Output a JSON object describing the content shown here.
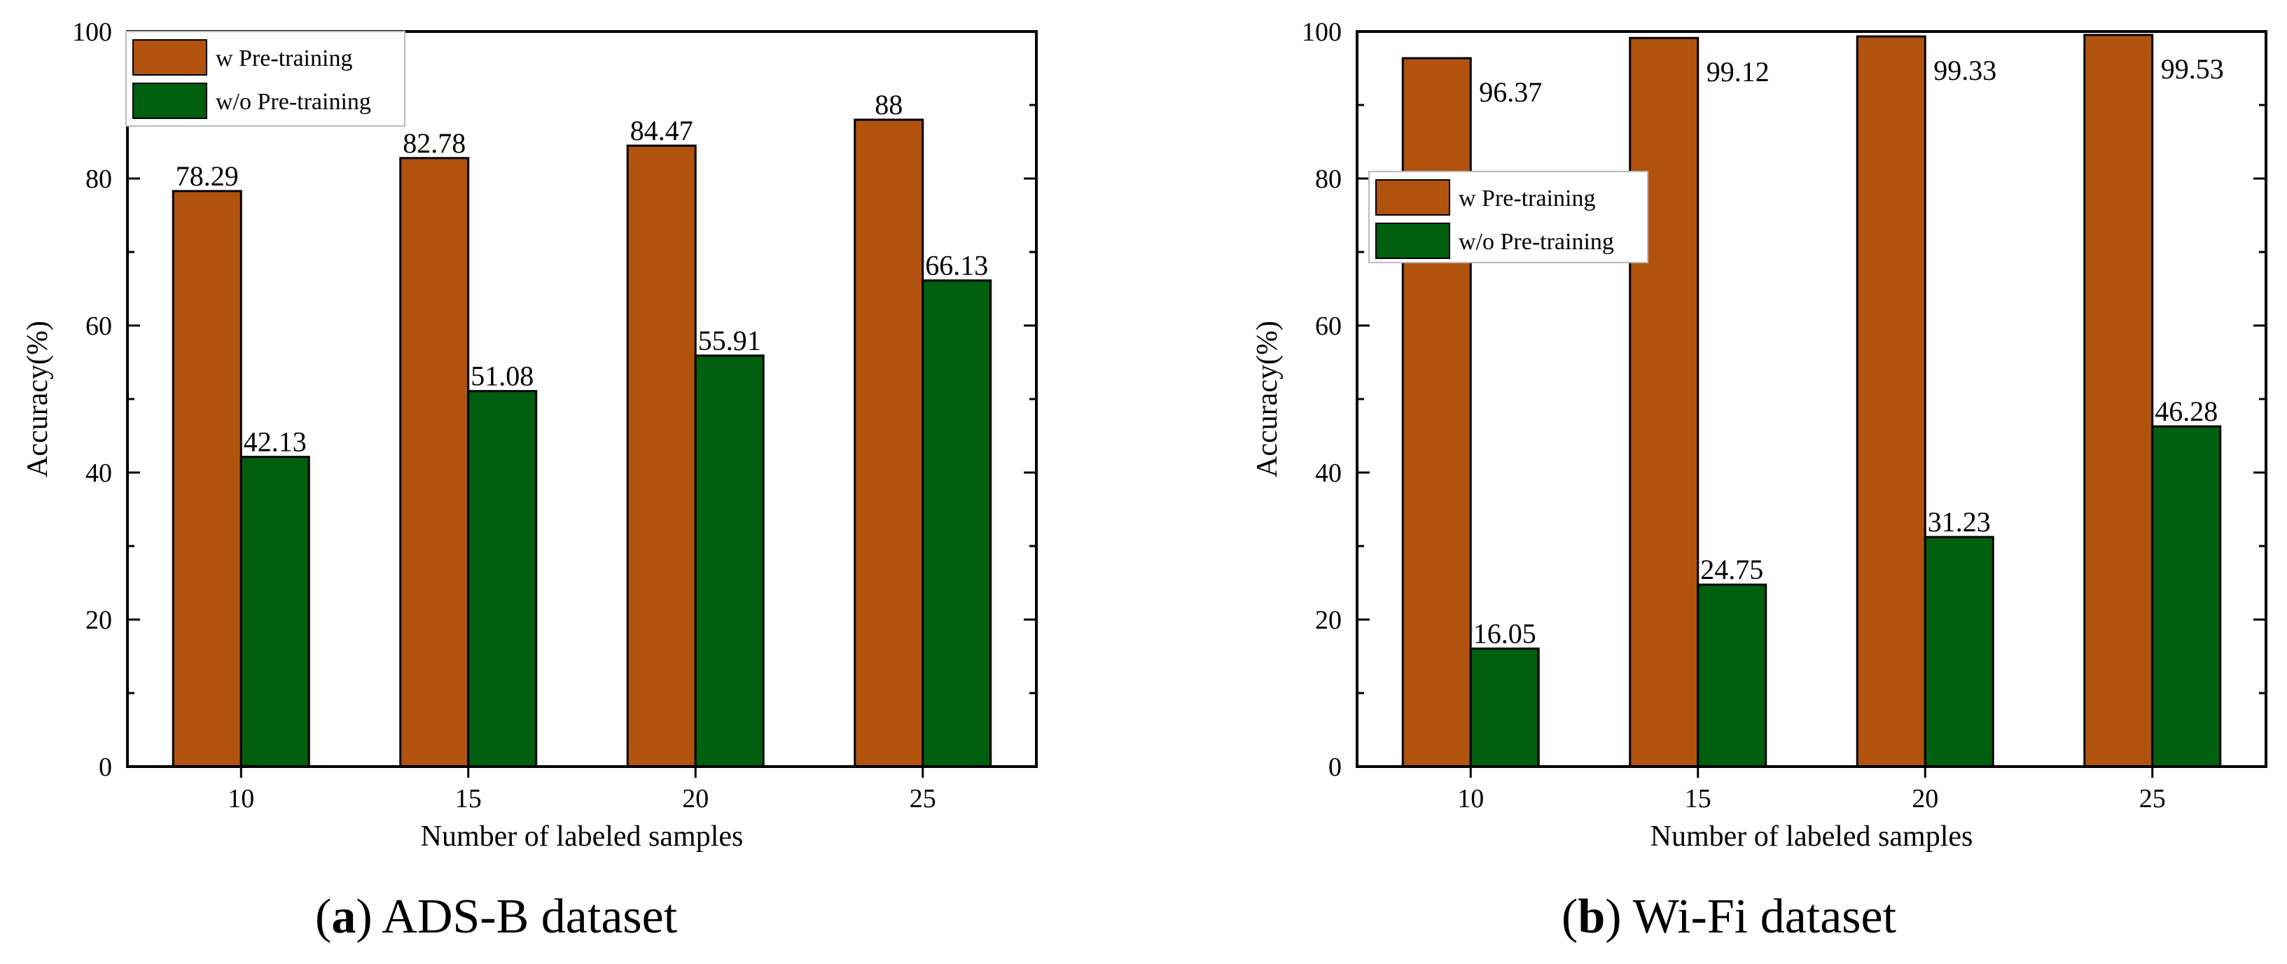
{
  "colors": {
    "w_pretrain": "#B1530F",
    "wo_pretrain": "#005E0F",
    "axis": "#000000"
  },
  "chart_data": [
    {
      "type": "bar",
      "categories": [
        "10",
        "15",
        "20",
        "25"
      ],
      "series": [
        {
          "name": "w Pre-training",
          "values": [
            78.29,
            82.78,
            84.47,
            88
          ]
        },
        {
          "name": "w/o Pre-training",
          "values": [
            42.13,
            51.08,
            55.91,
            66.13
          ]
        }
      ],
      "value_labels": [
        [
          "78.29",
          "82.78",
          "84.47",
          "88"
        ],
        [
          "42.13",
          "51.08",
          "55.91",
          "66.13"
        ]
      ],
      "yticks": [
        "0",
        "20",
        "40",
        "60",
        "80",
        "100"
      ],
      "xlabel": "Number of labeled samples",
      "ylabel": "Accuracy(%)",
      "ylim": [
        0,
        100
      ],
      "legend_position": "top-left",
      "caption_letter": "a",
      "caption_text": "ADS-B dataset"
    },
    {
      "type": "bar",
      "categories": [
        "10",
        "15",
        "20",
        "25"
      ],
      "series": [
        {
          "name": "w Pre-training",
          "values": [
            96.37,
            99.12,
            99.33,
            99.53
          ]
        },
        {
          "name": "w/o Pre-training",
          "values": [
            16.05,
            24.75,
            31.23,
            46.28
          ]
        }
      ],
      "value_labels": [
        [
          "96.37",
          "99.12",
          "99.33",
          "99.53"
        ],
        [
          "16.05",
          "24.75",
          "31.23",
          "46.28"
        ]
      ],
      "yticks": [
        "0",
        "20",
        "40",
        "60",
        "80",
        "100"
      ],
      "xlabel": "Number of labeled samples",
      "ylabel": "Accuracy(%)",
      "ylim": [
        0,
        100
      ],
      "legend_position": "upper-left",
      "caption_letter": "b",
      "caption_text": "Wi-Fi dataset"
    }
  ]
}
